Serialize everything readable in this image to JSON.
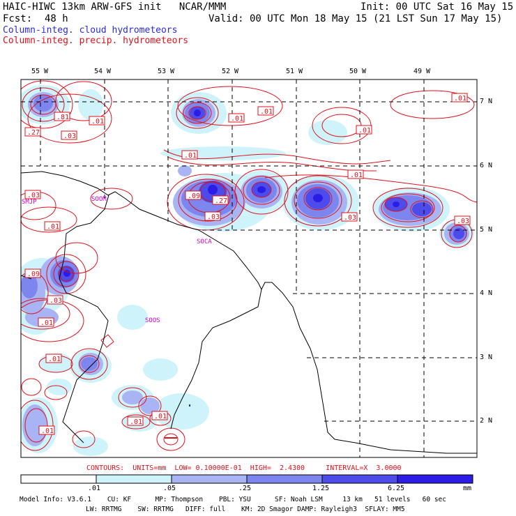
{
  "header": {
    "model_line": "HAIC-HIWC 13km ARW-GFS init   NCAR/MMM",
    "init_line": "Init: 00 UTC Sat 16 May 15",
    "fcst_label": "Fcst:",
    "fcst_value": "48 h",
    "valid_line": "Valid: 00 UTC Mon 18 May 15 (21 LST Sun 17 May 15)",
    "field_cloud": "Column-integ. cloud hydrometeors",
    "field_precip": "Column-integ. precip. hydrometeors"
  },
  "map": {
    "lon_labels": [
      "55 W",
      "54 W",
      "53 W",
      "52 W",
      "51 W",
      "50 W",
      "49 W"
    ],
    "lat_labels": [
      "7 N",
      "6 N",
      "5 N",
      "4 N",
      "3 N",
      "2 N"
    ],
    "station_labels": [
      "SMJP",
      "SOCA",
      "SOOS",
      "SOOM"
    ],
    "contour_labels": [
      ".01",
      ".81",
      ".27",
      ".03",
      ".01",
      ".01",
      ".01",
      ".01",
      ".03",
      ".09",
      ".27",
      ".03",
      ".01",
      ".03",
      ".01",
      ".09",
      ".03",
      ".01",
      ".01",
      ".01",
      ".01",
      ".01",
      ".01",
      ".03"
    ],
    "colors": {
      "cloud_fill_1": "#cff3fb",
      "cloud_fill_2": "#a8b4f3",
      "cloud_fill_3": "#7d86ee",
      "cloud_fill_4": "#4d4be9",
      "cloud_fill_5": "#2b1ce6",
      "precip_contour": "#e0101a",
      "coast": "#000000",
      "station": "#cc00cc"
    }
  },
  "footer": {
    "contour_info": "CONTOURS:  UNITS=mm  LOW= 0.10000E-01  HIGH=  2.4300     INTERVAL=X  3.0000",
    "legend_ticks": [
      ".01",
      ".05",
      ".25",
      "1.25",
      "6.25"
    ],
    "legend_unit": "mm",
    "model_info_line1": "Model Info: V3.6.1    CU: KF      MP: Thompson    PBL: YSU      SF: Noah LSM     13 km   51 levels   60 sec",
    "model_info_line2": "LW: RRTMG    SW: RRTMG   DIFF: full    KM: 2D Smagor DAMP: Rayleigh3  SFLAY: MM5"
  }
}
